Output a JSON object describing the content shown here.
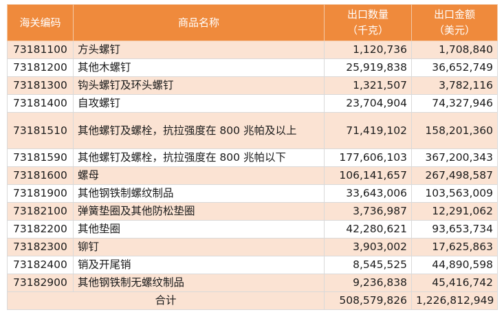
{
  "header": {
    "code": "海关编码",
    "name": "商品名称",
    "qty_line1": "出口数量",
    "qty_line2": "（千克）",
    "amt_line1": "出口金额",
    "amt_line2": "（美元）"
  },
  "rows": [
    {
      "code": "73181100",
      "name": "方头螺钉",
      "qty": "1,120,736",
      "amount": "1,708,840"
    },
    {
      "code": "73181200",
      "name": "其他木螺钉",
      "qty": "25,919,838",
      "amount": "36,652,749"
    },
    {
      "code": "73181300",
      "name": "钩头螺钉及环头螺钉",
      "qty": "1,321,507",
      "amount": "3,782,116"
    },
    {
      "code": "73181400",
      "name": "自攻螺钉",
      "qty": "23,704,904",
      "amount": "74,327,946"
    },
    {
      "code": "73181510",
      "name": "其他螺钉及螺栓，抗拉强度在 800 兆帕及以上",
      "qty": "71,419,102",
      "amount": "158,201,360"
    },
    {
      "code": "73181590",
      "name": "其他螺钉及螺栓，抗拉强度在 800 兆帕以下",
      "qty": "177,606,103",
      "amount": "367,200,343"
    },
    {
      "code": "73181600",
      "name": "螺母",
      "qty": "106,141,657",
      "amount": "267,498,587"
    },
    {
      "code": "73181900",
      "name": "其他钢铁制螺纹制品",
      "qty": "33,643,006",
      "amount": "103,563,009"
    },
    {
      "code": "73182100",
      "name": "弹簧垫圈及其他防松垫圈",
      "qty": "3,736,987",
      "amount": "12,291,062"
    },
    {
      "code": "73182200",
      "name": "其他垫圈",
      "qty": "42,280,621",
      "amount": "93,653,734"
    },
    {
      "code": "73182300",
      "name": "铆钉",
      "qty": "3,903,002",
      "amount": "17,625,863"
    },
    {
      "code": "73182400",
      "name": "销及开尾销",
      "qty": "8,545,525",
      "amount": "44,890,598"
    },
    {
      "code": "73182900",
      "name": "其他钢铁制无螺纹制品",
      "qty": "9,236,838",
      "amount": "45,416,742"
    }
  ],
  "total": {
    "label": "合计",
    "qty": "508,579,826",
    "amount": "1,226,812,949"
  }
}
